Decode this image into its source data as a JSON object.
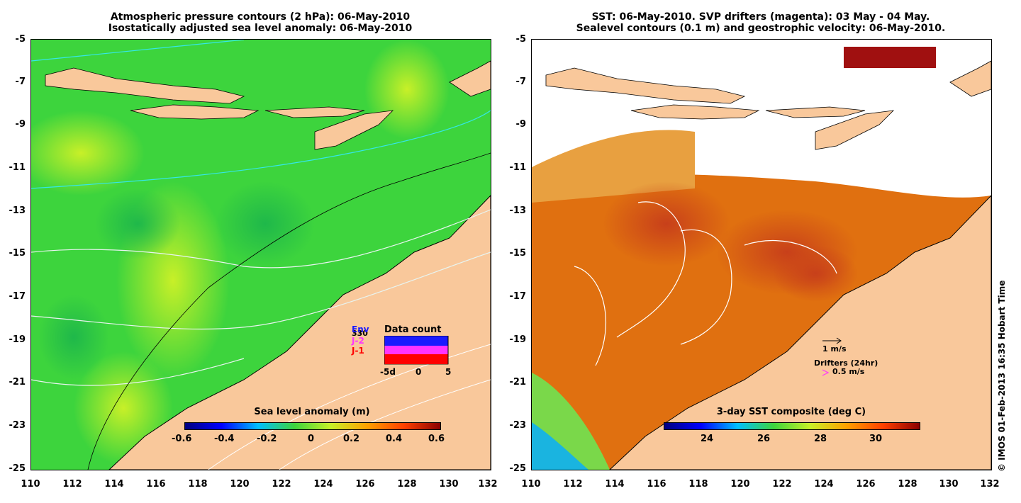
{
  "left": {
    "title_line1": "Atmospheric pressure contours (2 hPa): 06-May-2010",
    "title_line2": "Isostatically adjusted sea level anomaly: 06-May-2010",
    "colorbar_title": "Sea level anomaly (m)",
    "colorbar_ticks": [
      "-0.6",
      "-0.4",
      "-0.2",
      "0",
      "0.2",
      "0.4",
      "0.6"
    ],
    "inset": {
      "title": "Data count",
      "series_labels": [
        "Env",
        "J-2",
        "J-1"
      ],
      "series_colors": [
        "#1a1aff",
        "#ff33ff",
        "#ff0000"
      ],
      "count": "330",
      "x_ticks": [
        "-5d",
        "0",
        "5"
      ]
    }
  },
  "right": {
    "title_line1": "SST: 06-May-2010. SVP drifters (magenta): 03 May - 04 May.",
    "title_line2": "Sealevel contours (0.1 m) and geostrophic velocity: 06-May-2010.",
    "colorbar_title": "3-day SST composite (deg C)",
    "colorbar_ticks": [
      "24",
      "26",
      "28",
      "30"
    ],
    "vector_scale_label": "1 m/s",
    "drifters_label": "Drifters (24hr)",
    "drifter_scale_label": "0.5 m/s"
  },
  "y_ticks": [
    "-5",
    "-7",
    "-9",
    "-11",
    "-13",
    "-15",
    "-17",
    "-19",
    "-21",
    "-23",
    "-25"
  ],
  "x_ticks": [
    "110",
    "112",
    "114",
    "116",
    "118",
    "120",
    "122",
    "124",
    "126",
    "128",
    "130",
    "132"
  ],
  "credit": "© IMOS 01-Feb-2013 16:35 Hobart Time",
  "colors": {
    "land": "#f9c89b",
    "ocean_green": "#3dd43d",
    "sst_orange": "#e07010"
  }
}
